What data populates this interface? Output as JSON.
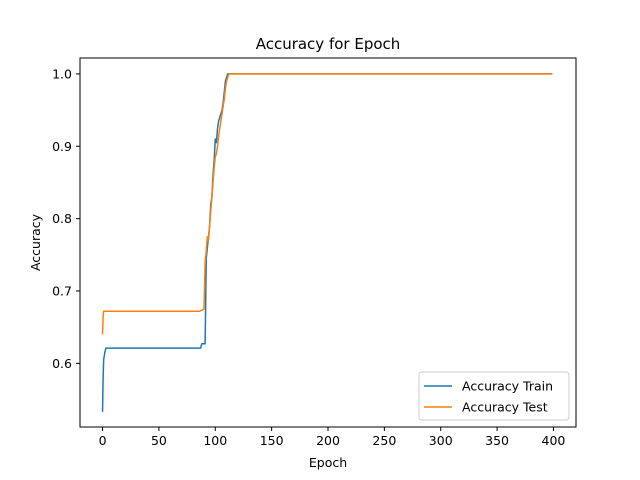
{
  "chart_data": {
    "type": "line",
    "title": "Accuracy for Epoch",
    "xlabel": "Epoch",
    "ylabel": "Accuracy",
    "xlim": [
      -20,
      420
    ],
    "ylim": [
      0.512,
      1.022
    ],
    "xticks": [
      0,
      50,
      100,
      150,
      200,
      250,
      300,
      350,
      400
    ],
    "yticks": [
      0.6,
      0.7,
      0.8,
      0.9,
      1.0
    ],
    "ytick_labels": [
      "0.6",
      "0.7",
      "0.8",
      "0.9",
      "1.0"
    ],
    "grid": false,
    "legend_position": "lower-right",
    "series": [
      {
        "name": "Accuracy Train",
        "color": "#1f77b4",
        "points": [
          [
            0,
            0.533
          ],
          [
            0.5,
            0.58
          ],
          [
            1,
            0.605
          ],
          [
            2,
            0.615
          ],
          [
            3,
            0.621
          ],
          [
            5,
            0.621
          ],
          [
            30,
            0.621
          ],
          [
            60,
            0.621
          ],
          [
            87,
            0.621
          ],
          [
            88,
            0.627
          ],
          [
            91,
            0.627
          ],
          [
            92,
            0.745
          ],
          [
            93,
            0.76
          ],
          [
            95,
            0.79
          ],
          [
            96,
            0.82
          ],
          [
            97,
            0.83
          ],
          [
            98,
            0.86
          ],
          [
            99,
            0.88
          ],
          [
            100,
            0.91
          ],
          [
            101,
            0.905
          ],
          [
            102,
            0.925
          ],
          [
            103,
            0.935
          ],
          [
            104,
            0.94
          ],
          [
            105,
            0.945
          ],
          [
            106,
            0.95
          ],
          [
            107,
            0.96
          ],
          [
            108,
            0.975
          ],
          [
            109,
            0.99
          ],
          [
            110,
            0.995
          ],
          [
            111,
            1.0
          ],
          [
            150,
            1.0
          ],
          [
            200,
            1.0
          ],
          [
            300,
            1.0
          ],
          [
            399,
            1.0
          ]
        ]
      },
      {
        "name": "Accuracy Test",
        "color": "#ff7f0e",
        "points": [
          [
            0,
            0.64
          ],
          [
            0.5,
            0.665
          ],
          [
            1,
            0.672
          ],
          [
            5,
            0.672
          ],
          [
            30,
            0.672
          ],
          [
            60,
            0.672
          ],
          [
            86,
            0.672
          ],
          [
            89,
            0.674
          ],
          [
            90,
            0.675
          ],
          [
            91,
            0.74
          ],
          [
            92,
            0.755
          ],
          [
            93,
            0.775
          ],
          [
            94,
            0.77
          ],
          [
            95,
            0.79
          ],
          [
            96,
            0.81
          ],
          [
            97,
            0.83
          ],
          [
            98,
            0.85
          ],
          [
            99,
            0.87
          ],
          [
            100,
            0.885
          ],
          [
            101,
            0.89
          ],
          [
            102,
            0.9
          ],
          [
            103,
            0.915
          ],
          [
            104,
            0.925
          ],
          [
            105,
            0.935
          ],
          [
            106,
            0.945
          ],
          [
            107,
            0.955
          ],
          [
            108,
            0.965
          ],
          [
            109,
            0.98
          ],
          [
            110,
            0.99
          ],
          [
            112,
            1.0
          ],
          [
            150,
            1.0
          ],
          [
            200,
            1.0
          ],
          [
            300,
            1.0
          ],
          [
            399,
            1.0
          ]
        ]
      }
    ]
  }
}
